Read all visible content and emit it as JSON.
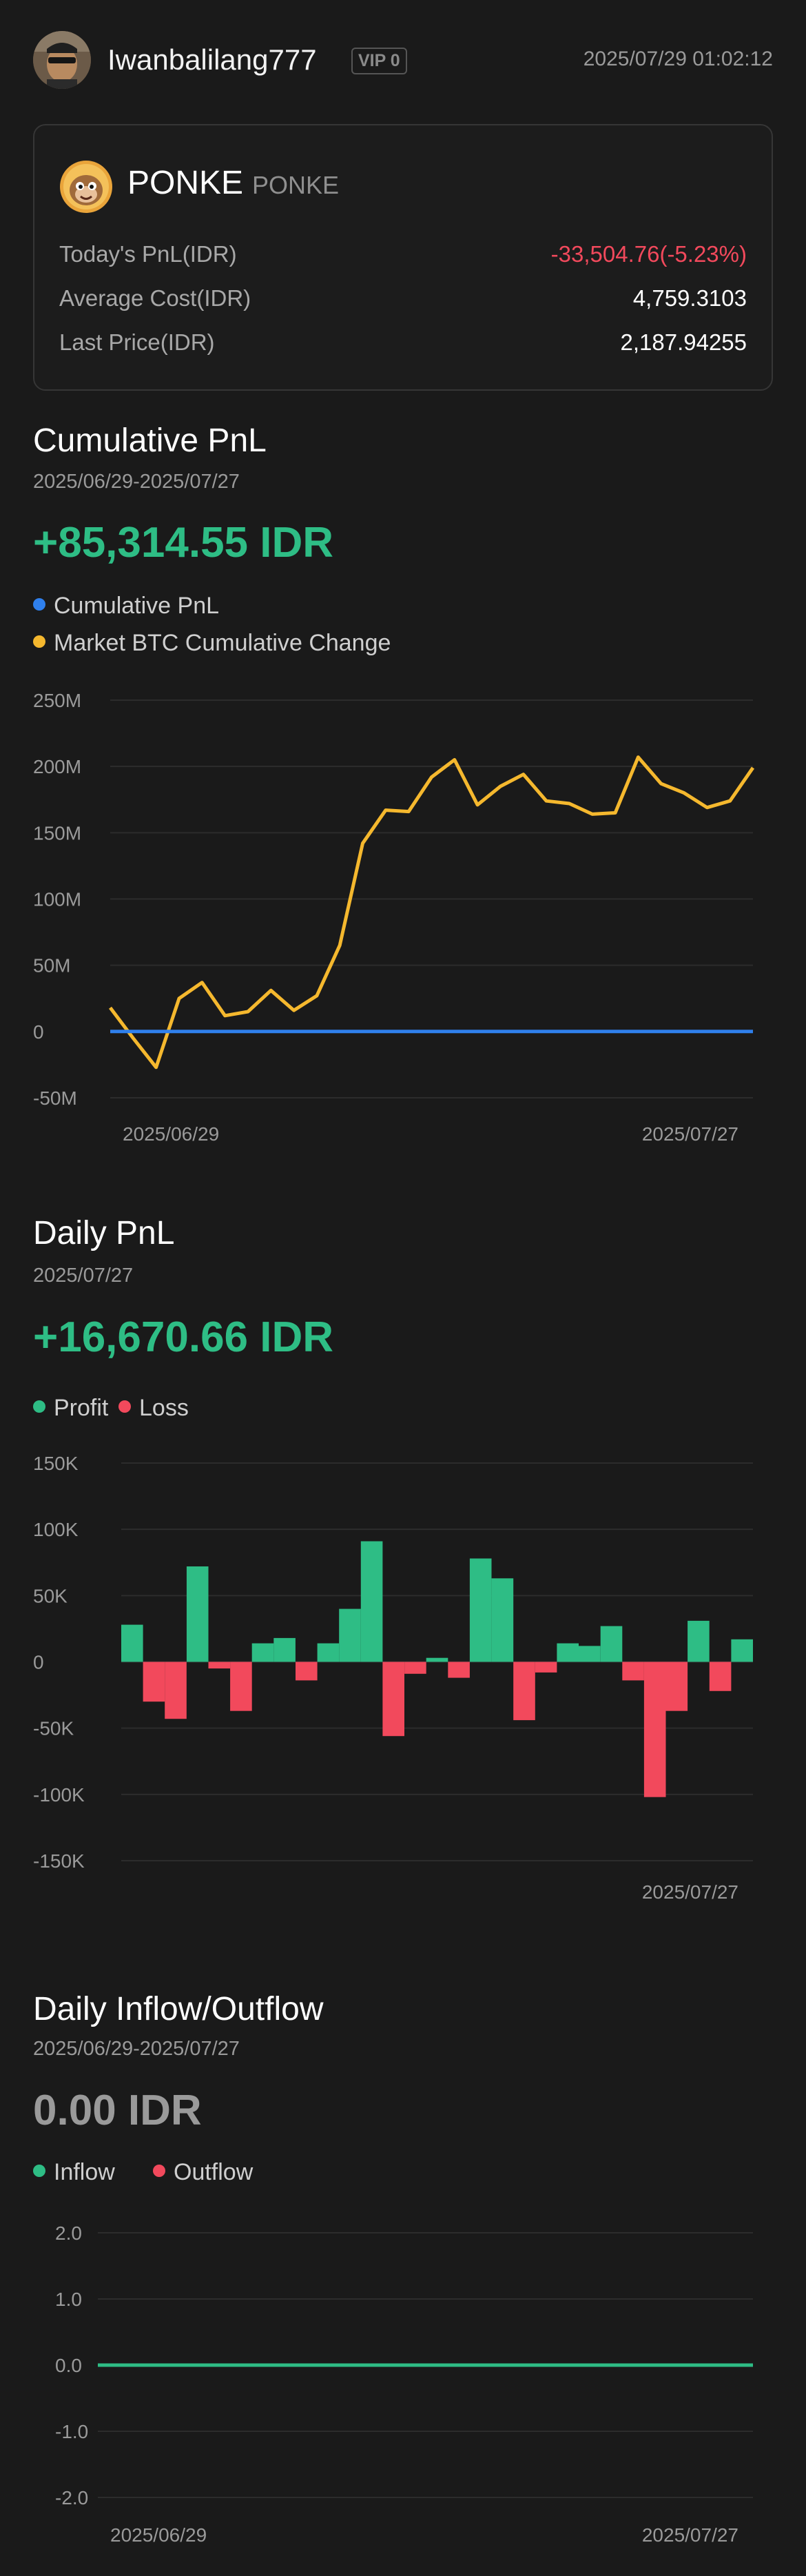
{
  "header": {
    "username": "Iwanbalilang777",
    "vip": "VIP 0",
    "timestamp": "2025/07/29 01:02:12"
  },
  "asset_card": {
    "name": "PONKE",
    "subname": "PONKE",
    "rows": [
      {
        "label": "Today's PnL(IDR)",
        "value": "-33,504.76(-5.23%)"
      },
      {
        "label": "Average Cost(IDR)",
        "value": "4,759.3103"
      },
      {
        "label": "Last Price(IDR)",
        "value": "2,187.94255"
      }
    ]
  },
  "cumulative": {
    "title": "Cumulative PnL",
    "date_range": "2025/06/29-2025/07/27",
    "value": "+85,314.55 IDR",
    "legend": [
      "Cumulative PnL",
      "Market BTC Cumulative Change"
    ],
    "colors": {
      "pnl": "#2f80ed",
      "btc": "#f5b82e"
    }
  },
  "daily": {
    "title": "Daily PnL",
    "date": "2025/07/27",
    "value": "+16,670.66 IDR",
    "legend": [
      "Profit",
      "Loss"
    ],
    "colors": {
      "profit": "#2ebd85",
      "loss": "#f2495c"
    }
  },
  "flow": {
    "title": "Daily Inflow/Outflow",
    "date_range": "2025/06/29-2025/07/27",
    "value": "0.00 IDR",
    "legend": [
      "Inflow",
      "Outflow"
    ],
    "colors": {
      "inflow": "#2ebd85",
      "outflow": "#f2495c"
    }
  },
  "chart_data": [
    {
      "type": "line",
      "ylim": [
        -50,
        250
      ],
      "y_ticks": [
        "250M",
        "200M",
        "150M",
        "100M",
        "50M",
        "0",
        "-50M"
      ],
      "y_tick_values": [
        250,
        200,
        150,
        100,
        50,
        0,
        -50
      ],
      "x_labels": [
        "2025/06/29",
        "2025/07/27"
      ],
      "series": [
        {
          "name": "Market BTC Cumulative Change",
          "values": [
            18,
            -5,
            -27,
            25,
            37,
            12,
            15,
            31,
            16,
            27,
            65,
            142,
            167,
            166,
            192,
            205,
            171,
            185,
            194,
            174,
            172,
            164,
            165,
            207,
            187,
            180,
            169,
            174,
            199
          ]
        },
        {
          "name": "Cumulative PnL",
          "values": [
            0,
            0,
            0,
            0,
            0,
            0,
            0,
            0,
            0,
            0,
            0,
            0,
            0,
            0,
            0,
            0,
            0,
            0,
            0,
            0,
            0,
            0,
            0,
            0,
            0,
            0,
            0,
            0,
            0
          ]
        }
      ]
    },
    {
      "type": "bar",
      "ylim": [
        -150,
        150
      ],
      "y_ticks": [
        "150K",
        "100K",
        "50K",
        "0",
        "-50K",
        "-100K",
        "-150K"
      ],
      "y_tick_values": [
        150,
        100,
        50,
        0,
        -50,
        -100,
        -150
      ],
      "x_labels": [
        "2025/07/27"
      ],
      "values": [
        28,
        -30,
        -43,
        72,
        -5,
        -37,
        14,
        18,
        -14,
        14,
        40,
        91,
        -56,
        -9,
        3,
        -12,
        78,
        63,
        -44,
        -8,
        14,
        12,
        27,
        -14,
        -102,
        -37,
        31,
        -22,
        17
      ]
    },
    {
      "type": "line",
      "ylim": [
        -2,
        2
      ],
      "y_ticks": [
        "2.0",
        "1.0",
        "0.0",
        "-1.0",
        "-2.0"
      ],
      "y_tick_values": [
        2,
        1,
        0,
        -1,
        -2
      ],
      "x_labels": [
        "2025/06/29",
        "2025/07/27"
      ],
      "series": [
        {
          "name": "Inflow",
          "values": [
            0,
            0,
            0,
            0,
            0,
            0,
            0,
            0,
            0,
            0,
            0,
            0,
            0,
            0,
            0,
            0,
            0,
            0,
            0,
            0,
            0,
            0,
            0,
            0,
            0,
            0,
            0,
            0,
            0
          ]
        }
      ]
    }
  ]
}
